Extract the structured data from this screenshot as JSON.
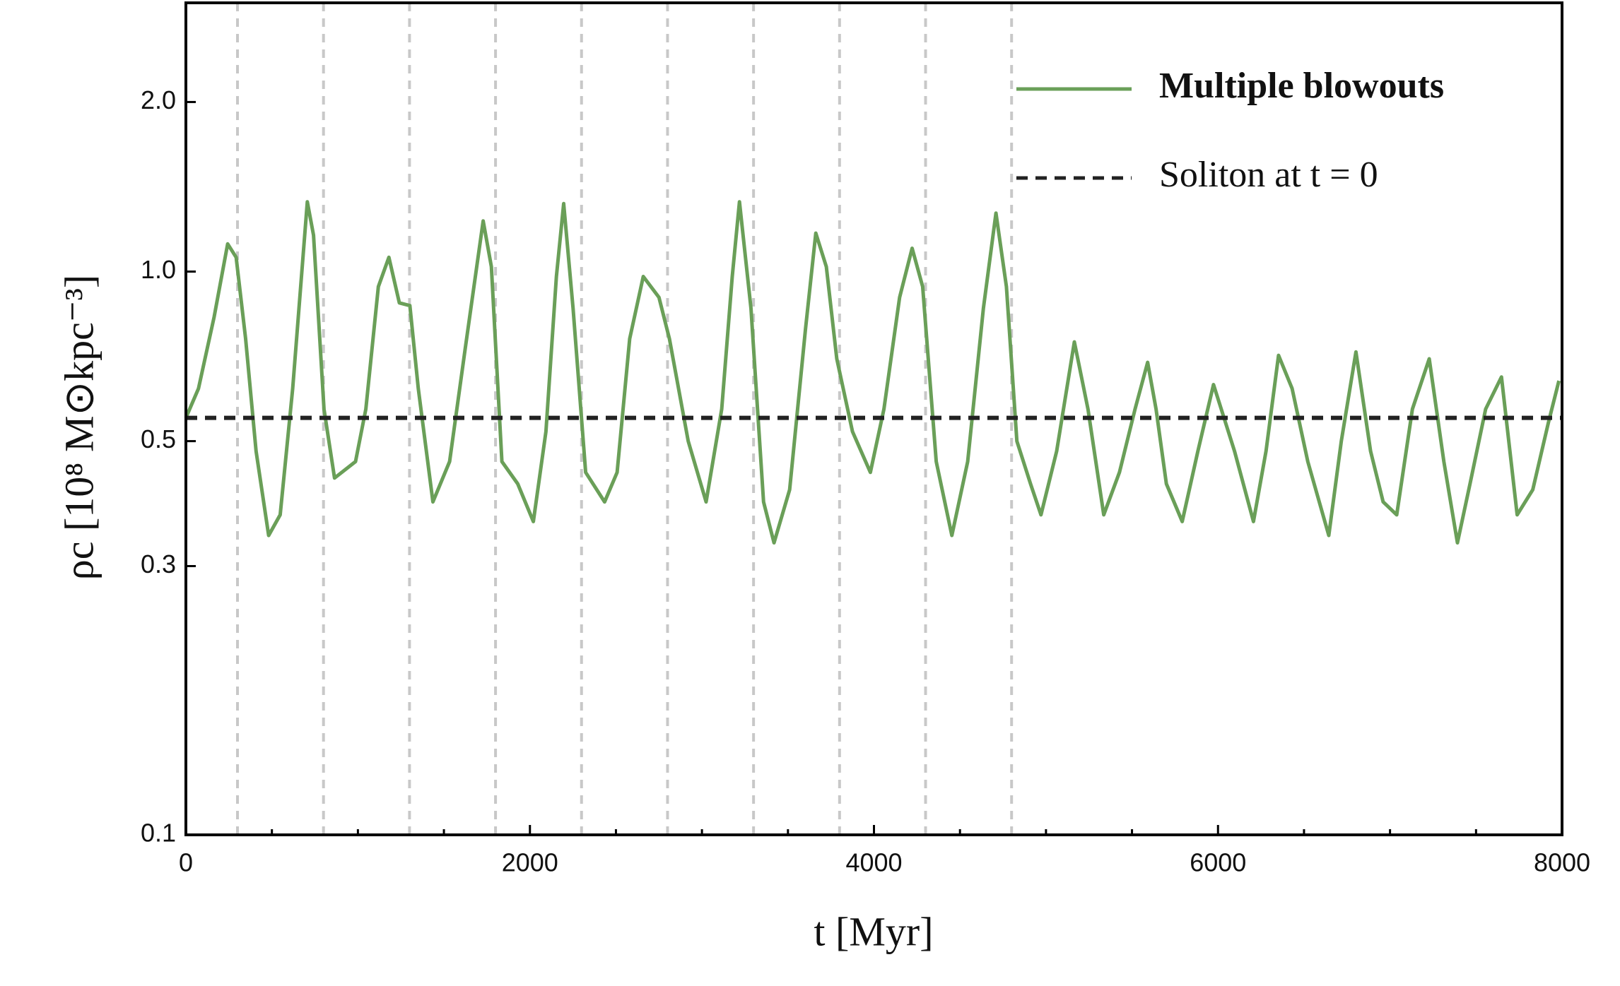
{
  "chart_data": {
    "type": "line",
    "xlabel": "t [Myr]",
    "ylabel": "ρc [10⁸ M⊙kpc⁻³]",
    "xlim": [
      0,
      8000
    ],
    "ylim": [
      0.1,
      3.0
    ],
    "yscale": "log",
    "xticks": [
      0,
      2000,
      4000,
      6000,
      8000
    ],
    "xminorticks": [
      500,
      1000,
      1500,
      2500,
      3000,
      3500,
      4500,
      5000,
      5500,
      6500,
      7000,
      7500
    ],
    "yticks": [
      0.1,
      0.3,
      0.5,
      {
        "value": 1,
        "label": "1.0"
      },
      {
        "value": 2,
        "label": "2.0"
      }
    ],
    "legend": "upper right",
    "vlines": {
      "color": "#c8c8c8",
      "x": [
        300,
        800,
        1300,
        1800,
        2300,
        2800,
        3300,
        3800,
        4300,
        4800
      ]
    },
    "series": [
      {
        "name": "Multiple blowouts",
        "color": "#6a9f58",
        "x": [
          0,
          73,
          164,
          243,
          292,
          347,
          408,
          481,
          548,
          621,
          706,
          742,
          803,
          864,
          986,
          1046,
          1119,
          1180,
          1241,
          1302,
          1351,
          1436,
          1533,
          1624,
          1728,
          1776,
          1837,
          1929,
          2020,
          2093,
          2154,
          2196,
          2251,
          2324,
          2434,
          2507,
          2580,
          2659,
          2750,
          2811,
          2920,
          3024,
          3115,
          3176,
          3218,
          3285,
          3358,
          3419,
          3510,
          3602,
          3662,
          3723,
          3784,
          3875,
          3979,
          4058,
          4149,
          4222,
          4283,
          4362,
          4453,
          4545,
          4636,
          4709,
          4770,
          4831,
          4910,
          4971,
          5062,
          5165,
          5244,
          5336,
          5427,
          5518,
          5591,
          5640,
          5700,
          5792,
          5883,
          5974,
          6096,
          6206,
          6279,
          6352,
          6431,
          6522,
          6644,
          6717,
          6802,
          6887,
          6960,
          7039,
          7130,
          7228,
          7313,
          7392,
          7465,
          7556,
          7648,
          7739,
          7830,
          7921,
          7982
        ],
        "values": [
          0.55,
          0.62,
          0.83,
          1.12,
          1.06,
          0.76,
          0.48,
          0.34,
          0.37,
          0.62,
          1.33,
          1.16,
          0.57,
          0.43,
          0.46,
          0.57,
          0.94,
          1.06,
          0.88,
          0.87,
          0.62,
          0.39,
          0.46,
          0.73,
          1.23,
          1.02,
          0.46,
          0.42,
          0.36,
          0.52,
          0.98,
          1.32,
          0.86,
          0.44,
          0.39,
          0.44,
          0.76,
          0.98,
          0.9,
          0.76,
          0.5,
          0.39,
          0.57,
          0.98,
          1.33,
          0.86,
          0.39,
          0.33,
          0.41,
          0.79,
          1.17,
          1.02,
          0.7,
          0.52,
          0.44,
          0.57,
          0.9,
          1.1,
          0.94,
          0.46,
          0.34,
          0.46,
          0.86,
          1.27,
          0.94,
          0.5,
          0.42,
          0.37,
          0.48,
          0.75,
          0.57,
          0.37,
          0.44,
          0.57,
          0.69,
          0.57,
          0.42,
          0.36,
          0.48,
          0.63,
          0.48,
          0.36,
          0.48,
          0.71,
          0.62,
          0.46,
          0.34,
          0.5,
          0.72,
          0.48,
          0.39,
          0.37,
          0.57,
          0.7,
          0.46,
          0.33,
          0.42,
          0.57,
          0.65,
          0.37,
          0.41,
          0.54,
          0.64
        ]
      },
      {
        "name": "Soliton at t = 0",
        "color": "#222222",
        "style": "dashed",
        "hline": 0.55
      }
    ]
  }
}
